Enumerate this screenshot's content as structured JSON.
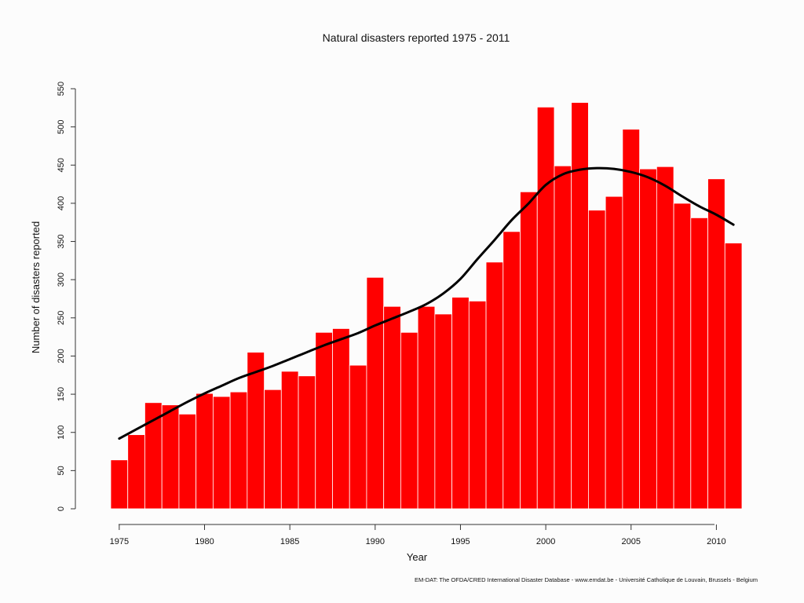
{
  "chart_data": {
    "type": "bar",
    "title": "Natural disasters reported 1975 - 2011",
    "xlabel": "Year",
    "ylabel": "Number of disasters reported",
    "source": "EM-DAT: The OFDA/CRED International Disaster Database - www.emdat.be - Université Catholique de Louvain, Brussels - Belgium",
    "ylim": [
      0,
      550
    ],
    "xlim": [
      1973,
      2013
    ],
    "y_ticks": [
      0,
      50,
      100,
      150,
      200,
      250,
      300,
      350,
      400,
      450,
      500,
      550
    ],
    "x_ticks": [
      1975,
      1980,
      1985,
      1990,
      1995,
      2000,
      2005,
      2010
    ],
    "grid": false,
    "bar_color": "#ff0000",
    "line_color": "#000000",
    "categories": [
      1975,
      1976,
      1977,
      1978,
      1979,
      1980,
      1981,
      1982,
      1983,
      1984,
      1985,
      1986,
      1987,
      1988,
      1989,
      1990,
      1991,
      1992,
      1993,
      1994,
      1995,
      1996,
      1997,
      1998,
      1999,
      2000,
      2001,
      2002,
      2003,
      2004,
      2005,
      2006,
      2007,
      2008,
      2009,
      2010,
      2011
    ],
    "values": [
      64,
      97,
      139,
      136,
      124,
      151,
      147,
      153,
      205,
      156,
      180,
      174,
      231,
      236,
      188,
      303,
      265,
      231,
      265,
      255,
      277,
      272,
      323,
      363,
      415,
      526,
      449,
      532,
      391,
      409,
      497,
      445,
      448,
      400,
      381,
      432,
      348
    ],
    "trend": {
      "x": [
        1975,
        1976,
        1977,
        1978,
        1979,
        1980,
        1981,
        1982,
        1983,
        1984,
        1985,
        1986,
        1987,
        1988,
        1989,
        1990,
        1991,
        1992,
        1993,
        1994,
        1995,
        1996,
        1997,
        1998,
        1999,
        2000,
        2001,
        2002,
        2003,
        2004,
        2005,
        2006,
        2007,
        2008,
        2009,
        2010,
        2011
      ],
      "y": [
        92,
        104,
        116,
        128,
        140,
        151,
        161,
        171,
        179,
        187,
        196,
        205,
        214,
        222,
        230,
        240,
        249,
        258,
        268,
        282,
        301,
        327,
        352,
        378,
        400,
        424,
        438,
        444,
        446,
        445,
        441,
        434,
        423,
        409,
        396,
        385,
        372
      ]
    }
  }
}
